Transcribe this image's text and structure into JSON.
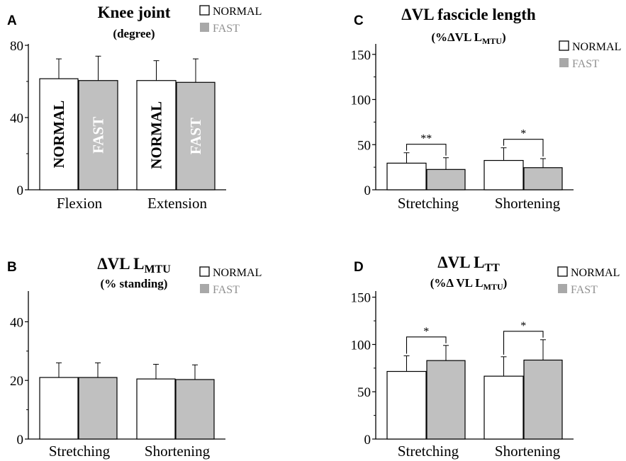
{
  "colors": {
    "normal_fill": "#ffffff",
    "fast_fill": "#c0c0c0",
    "axis": "#000000",
    "fast_legend_text": "#909090"
  },
  "chart_data": [
    {
      "panel": "A",
      "type": "bar",
      "title": "Knee joint",
      "subtitle": "(degree)",
      "xlabel": "",
      "ylabel": "",
      "ylim": [
        0,
        80
      ],
      "yticks": [
        "0",
        "40",
        "80"
      ],
      "categories": [
        "Flexion",
        "Extension"
      ],
      "series": [
        {
          "name": "NORMAL",
          "values": [
            61.5,
            60.5
          ],
          "errors": [
            11,
            11
          ],
          "bar_label": "NORMAL"
        },
        {
          "name": "FAST",
          "values": [
            60.5,
            59.5
          ],
          "errors": [
            13.5,
            13
          ],
          "bar_label": "FAST"
        }
      ],
      "significance": [],
      "legend": "top-right"
    },
    {
      "panel": "B",
      "type": "bar",
      "title": "ΔVL L",
      "title_sub": "MTU",
      "subtitle": "(% standing)",
      "xlabel": "",
      "ylabel": "",
      "ylim": [
        0,
        50
      ],
      "yticks": [
        "0",
        "20",
        "40"
      ],
      "categories": [
        "Stretching",
        "Shortening"
      ],
      "series": [
        {
          "name": "NORMAL",
          "values": [
            21,
            20.5
          ],
          "errors": [
            5,
            5
          ]
        },
        {
          "name": "FAST",
          "values": [
            21,
            20.3
          ],
          "errors": [
            5,
            5
          ]
        }
      ],
      "significance": [],
      "legend": "top-right"
    },
    {
      "panel": "C",
      "type": "bar",
      "title": "ΔVL fascicle length",
      "subtitle": "(%ΔVL L",
      "subtitle_sub": "MTU",
      "subtitle_end": ")",
      "xlabel": "",
      "ylabel": "",
      "ylim": [
        0,
        160
      ],
      "yticks": [
        "0",
        "50",
        "100",
        "150"
      ],
      "categories": [
        "Stretching",
        "Shortening"
      ],
      "series": [
        {
          "name": "NORMAL",
          "values": [
            29.5,
            32.5
          ],
          "errors": [
            11.5,
            14
          ]
        },
        {
          "name": "FAST",
          "values": [
            22.5,
            24.5
          ],
          "errors": [
            13,
            10
          ]
        }
      ],
      "significance": [
        "**",
        "*"
      ],
      "legend": "top-right"
    },
    {
      "panel": "D",
      "type": "bar",
      "title": "ΔVL L",
      "title_sub": "TT",
      "subtitle": "(%Δ VL L",
      "subtitle_sub": "MTU",
      "subtitle_end": ")",
      "xlabel": "",
      "ylabel": "",
      "ylim": [
        0,
        155
      ],
      "yticks": [
        "0",
        "50",
        "100",
        "150"
      ],
      "categories": [
        "Stretching",
        "Shortening"
      ],
      "series": [
        {
          "name": "NORMAL",
          "values": [
            71.5,
            66.5
          ],
          "errors": [
            16.5,
            20.5
          ]
        },
        {
          "name": "FAST",
          "values": [
            83,
            83.5
          ],
          "errors": [
            16,
            21.5
          ]
        }
      ],
      "significance": [
        "*",
        "*"
      ],
      "legend": "top-right"
    }
  ]
}
